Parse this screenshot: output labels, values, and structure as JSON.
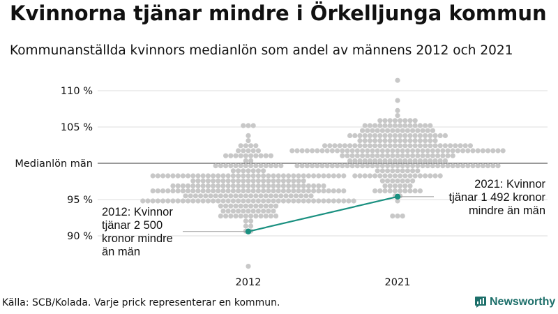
{
  "title": "Kvinnorna tjänar mindre i Örkelljunga kommun",
  "subtitle": "Kommunanställda kvinnors medianlön som andel av männens 2012 och 2021",
  "source": "Källa: SCB/Kolada. Varje prick representerar en kommun.",
  "brand": {
    "name": "Newsworthy",
    "icon": "newsworthy-logo-icon"
  },
  "colors": {
    "dots": "#c8c8c8",
    "highlight": "#1a9080",
    "grid": "#dddddd",
    "refline": "#333333"
  },
  "chart_data": {
    "type": "scatter",
    "subtype": "beeswarm",
    "categories": [
      "2012",
      "2021"
    ],
    "ylim": [
      86,
      112
    ],
    "yticks": [
      {
        "value": 90,
        "label": "90 %"
      },
      {
        "value": 95,
        "label": "95 %"
      },
      {
        "value": 100,
        "label": "Medianlön män"
      },
      {
        "value": 105,
        "label": "105 %"
      },
      {
        "value": 110,
        "label": "110 %"
      }
    ],
    "distributions": [
      {
        "category": "2012",
        "median": 96.5,
        "sd": 2.6,
        "min": 86.0,
        "max": 105.3,
        "count": 290
      },
      {
        "category": "2021",
        "median": 101.6,
        "sd": 2.4,
        "min": 92.7,
        "max": 111.4,
        "count": 290
      }
    ],
    "highlight": {
      "name": "Örkelljunga",
      "values": [
        {
          "category": "2012",
          "value": 90.6
        },
        {
          "category": "2021",
          "value": 95.4
        }
      ]
    },
    "annotations": [
      {
        "category": "2012",
        "text": "2012: Kvinnor\ntjänar 2 500\nkronor mindre\nän män"
      },
      {
        "category": "2021",
        "text": "2021: Kvinnor\ntjänar 1 492 kronor\nmindre än män"
      }
    ]
  }
}
